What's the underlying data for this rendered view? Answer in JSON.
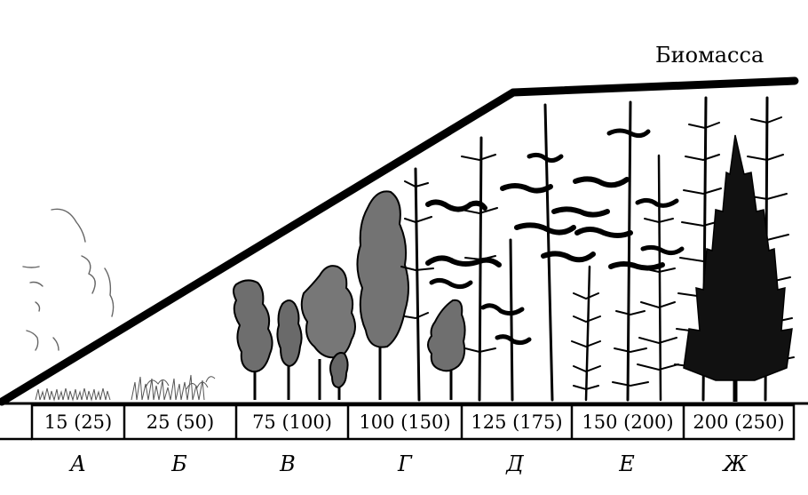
{
  "labels": {
    "biomass": "Биомасса"
  },
  "stages": [
    {
      "letter": "А",
      "years": "15 (25)"
    },
    {
      "letter": "Б",
      "years": "25 (50)"
    },
    {
      "letter": "В",
      "years": "75 (100)"
    },
    {
      "letter": "Г",
      "years": "100 (150)"
    },
    {
      "letter": "Д",
      "years": "125 (175)"
    },
    {
      "letter": "Е",
      "years": "150 (200)"
    },
    {
      "letter": "Ж",
      "years": "200 (250)"
    }
  ]
}
